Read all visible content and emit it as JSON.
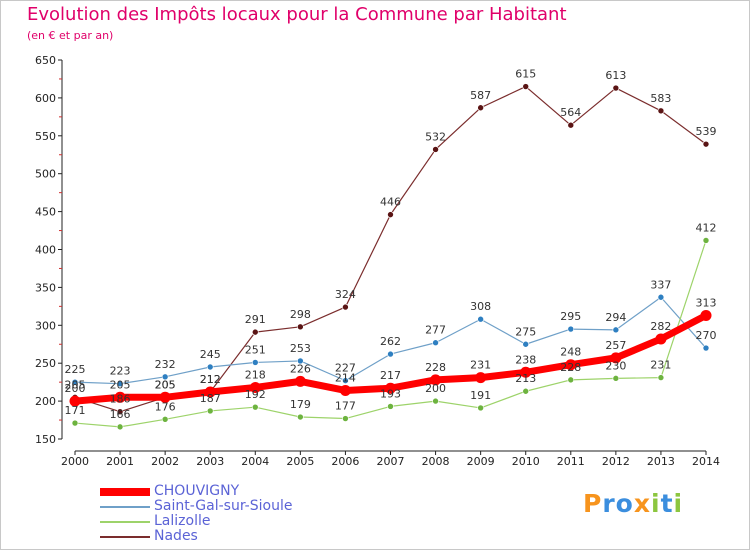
{
  "title": "Evolution des Impôts locaux pour la Commune par Habitant",
  "subtitle": "(en € et par an)",
  "brand": {
    "letters": [
      "P",
      "r",
      "o",
      "x",
      "i",
      "t",
      "i"
    ],
    "colors": [
      "#f7941d",
      "#3b8ede",
      "#3b8ede",
      "#f7941d",
      "#8cc63f",
      "#3b8ede",
      "#8cc63f"
    ]
  },
  "chart_data": {
    "type": "line",
    "x": [
      2000,
      2001,
      2002,
      2003,
      2004,
      2005,
      2006,
      2007,
      2008,
      2009,
      2010,
      2011,
      2012,
      2013,
      2014
    ],
    "ylim": [
      150,
      650
    ],
    "yticks": [
      150,
      200,
      250,
      300,
      350,
      400,
      450,
      500,
      550,
      600,
      650
    ],
    "grid": false,
    "legend_position": "bottom-left",
    "series": [
      {
        "name": "Nades",
        "color": "#7b2d2d",
        "marker": "#5a1414",
        "width": 1.2,
        "values": [
          205,
          186,
          205,
          212,
          291,
          298,
          324,
          446,
          532,
          587,
          615,
          564,
          613,
          583,
          539
        ]
      },
      {
        "name": "Saint-Gal-sur-Sioule",
        "color": "#6fa0c8",
        "marker": "#2e7fc1",
        "width": 1.2,
        "values": [
          225,
          223,
          232,
          245,
          251,
          253,
          227,
          262,
          277,
          308,
          275,
          295,
          294,
          337,
          270
        ]
      },
      {
        "name": "Lalizolle",
        "color": "#9dd36a",
        "marker": "#6db33f",
        "width": 1.2,
        "values": [
          171,
          166,
          176,
          187,
          192,
          179,
          177,
          193,
          200,
          191,
          213,
          228,
          230,
          231,
          412
        ]
      },
      {
        "name": "CHOUVIGNY",
        "color": "#ff0000",
        "marker": "#ff0000",
        "width": 7,
        "values": [
          200,
          205,
          205,
          212,
          218,
          226,
          214,
          217,
          228,
          231,
          238,
          248,
          257,
          282,
          313
        ]
      }
    ],
    "legend": [
      "CHOUVIGNY",
      "Saint-Gal-sur-Sioule",
      "Lalizolle",
      "Nades"
    ]
  }
}
